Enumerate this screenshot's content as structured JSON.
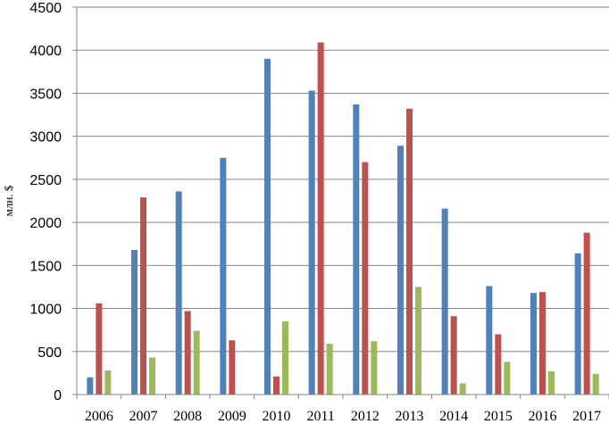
{
  "chart_data": {
    "type": "bar",
    "title": "",
    "xlabel": "",
    "ylabel": "млн. $",
    "ylim": [
      0,
      4500
    ],
    "ytick_step": 500,
    "yticks": [
      "0",
      "500",
      "1000",
      "1500",
      "2000",
      "2500",
      "3000",
      "3500",
      "4000",
      "4500"
    ],
    "grid": "horizontal",
    "legend": "none",
    "categories": [
      "2006",
      "2007",
      "2008",
      "2009",
      "2010",
      "2011",
      "2012",
      "2013",
      "2014",
      "2015",
      "2016",
      "2017"
    ],
    "series": [
      {
        "color": "#4F81BD",
        "values": [
          200,
          1680,
          2360,
          2750,
          3900,
          3530,
          3370,
          2890,
          2160,
          1260,
          1180,
          1640
        ]
      },
      {
        "color": "#C0504D",
        "values": [
          1060,
          2290,
          970,
          630,
          210,
          4090,
          2700,
          3320,
          910,
          700,
          1190,
          1880
        ]
      },
      {
        "color": "#9BBB59",
        "values": [
          280,
          430,
          740,
          0,
          850,
          590,
          620,
          1250,
          130,
          380,
          270,
          240
        ]
      }
    ]
  }
}
